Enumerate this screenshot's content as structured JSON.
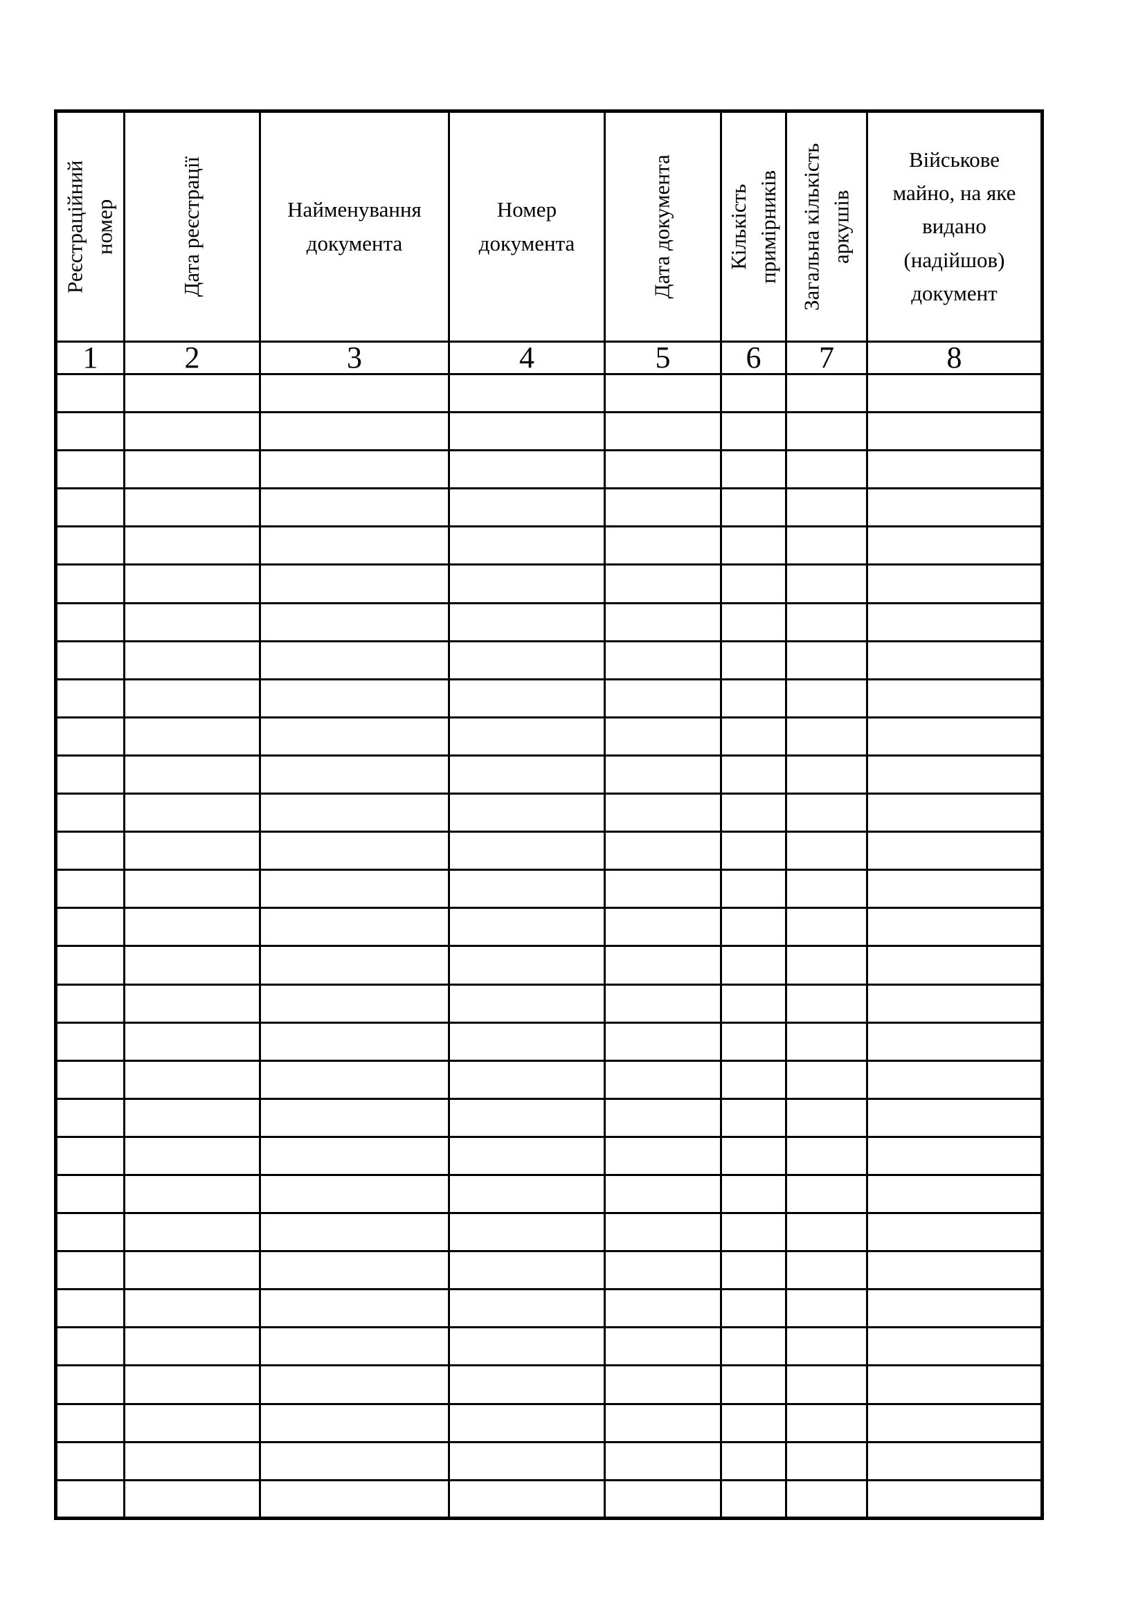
{
  "page": {
    "type": "scanned-registration-journal-form",
    "language": "uk",
    "background_color": "#ffffff",
    "ink_color": "#000000"
  },
  "table": {
    "columns": [
      {
        "num": "1",
        "label": "Реєстраційний номер",
        "lines": [
          "Реєстраційний",
          "номер"
        ],
        "orientation": "vertical"
      },
      {
        "num": "2",
        "label": "Дата реєстрації",
        "lines": [
          "Дата реєстрації"
        ],
        "orientation": "vertical"
      },
      {
        "num": "3",
        "label": "Найменування документа",
        "lines": [
          "Найменування",
          "документа"
        ],
        "orientation": "horizontal"
      },
      {
        "num": "4",
        "label": "Номер документа",
        "lines": [
          "Номер",
          "документа"
        ],
        "orientation": "horizontal"
      },
      {
        "num": "5",
        "label": "Дата документа",
        "lines": [
          "Дата документа"
        ],
        "orientation": "vertical"
      },
      {
        "num": "6",
        "label": "Кількість примірників",
        "lines": [
          "Кількість",
          "примірників"
        ],
        "orientation": "vertical"
      },
      {
        "num": "7",
        "label": "Загальна кількість аркушів",
        "lines": [
          "Загальна кількість",
          "аркушів"
        ],
        "orientation": "vertical"
      },
      {
        "num": "8",
        "label": "Військове майно, на яке видано (надійшов) документ",
        "lines": [
          "Військове",
          "майно, на яке",
          "видано",
          "(надійшов)",
          "документ"
        ],
        "orientation": "horizontal"
      }
    ],
    "body": {
      "row_count": 30,
      "cell_value": ""
    }
  }
}
